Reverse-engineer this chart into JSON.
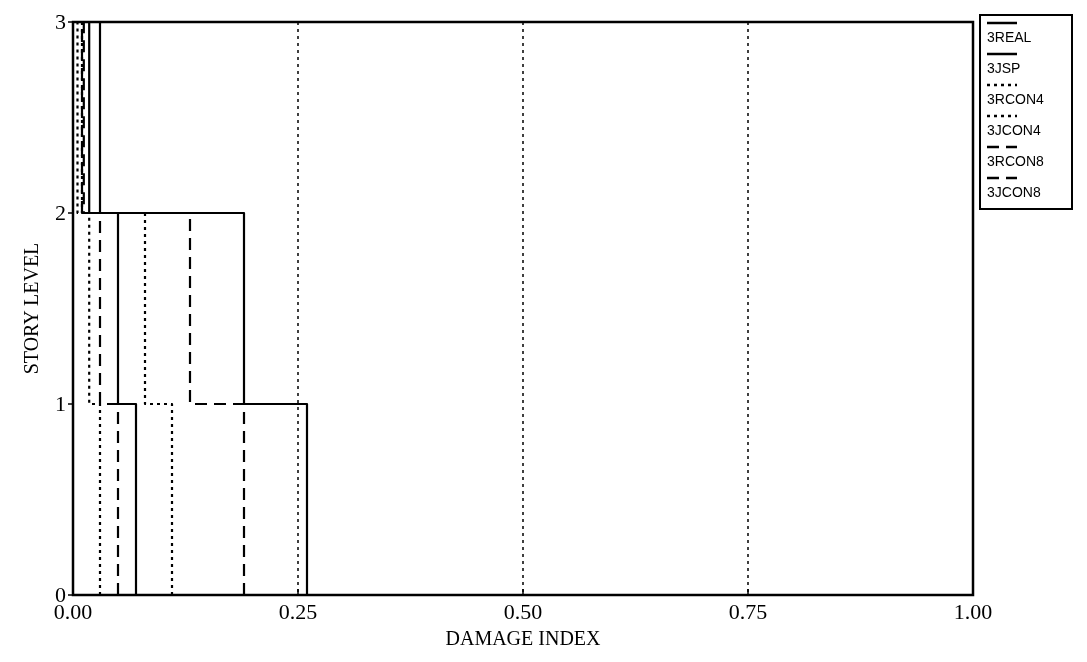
{
  "chart_data": {
    "type": "line",
    "xlabel": "DAMAGE INDEX",
    "ylabel": "STORY LEVEL",
    "xlim": [
      0,
      1
    ],
    "ylim": [
      0,
      3
    ],
    "xticks": [
      {
        "value": 0,
        "label": "0.00"
      },
      {
        "value": 0.25,
        "label": "0.25"
      },
      {
        "value": 0.5,
        "label": "0.50"
      },
      {
        "value": 0.75,
        "label": "0.75"
      },
      {
        "value": 1,
        "label": "1.00"
      }
    ],
    "yticks": [
      0,
      1,
      2,
      3
    ],
    "grid": "x",
    "legend": "top right",
    "series": [
      {
        "name": "3REAL",
        "color": "#000000",
        "line_style": "solid",
        "x": [
          0.26,
          0.26,
          0.19,
          0.19,
          0.03,
          0.03
        ],
        "values": [
          0,
          1,
          1,
          2,
          2,
          3
        ]
      },
      {
        "name": "3JSP",
        "color": "#000000",
        "line_style": "solid",
        "x": [
          0.07,
          0.07,
          0.05,
          0.05,
          0.018,
          0.018
        ],
        "values": [
          0,
          1,
          1,
          2,
          2,
          3
        ]
      },
      {
        "name": "3RCON4",
        "color": "#000000",
        "line_style": "dotted",
        "x": [
          0.11,
          0.11,
          0.08,
          0.08,
          0.005,
          0.005
        ],
        "values": [
          0,
          1,
          1,
          2,
          2,
          3
        ]
      },
      {
        "name": "3JCON4",
        "color": "#000000",
        "line_style": "dotted",
        "x": [
          0.03,
          0.03,
          0.018,
          0.018,
          0.01,
          0.01
        ],
        "values": [
          0,
          1,
          1,
          2,
          2,
          3
        ]
      },
      {
        "name": "3RCON8",
        "color": "#000000",
        "line_style": "dashed",
        "x": [
          0.19,
          0.19,
          0.13,
          0.13,
          0.012,
          0.012
        ],
        "values": [
          0,
          1,
          1,
          2,
          2,
          3
        ]
      },
      {
        "name": "3JCON8",
        "color": "#000000",
        "line_style": "dashed",
        "x": [
          0.05,
          0.05,
          0.03,
          0.03,
          0.01,
          0.01
        ],
        "values": [
          0,
          1,
          1,
          2,
          2,
          3
        ]
      }
    ]
  }
}
